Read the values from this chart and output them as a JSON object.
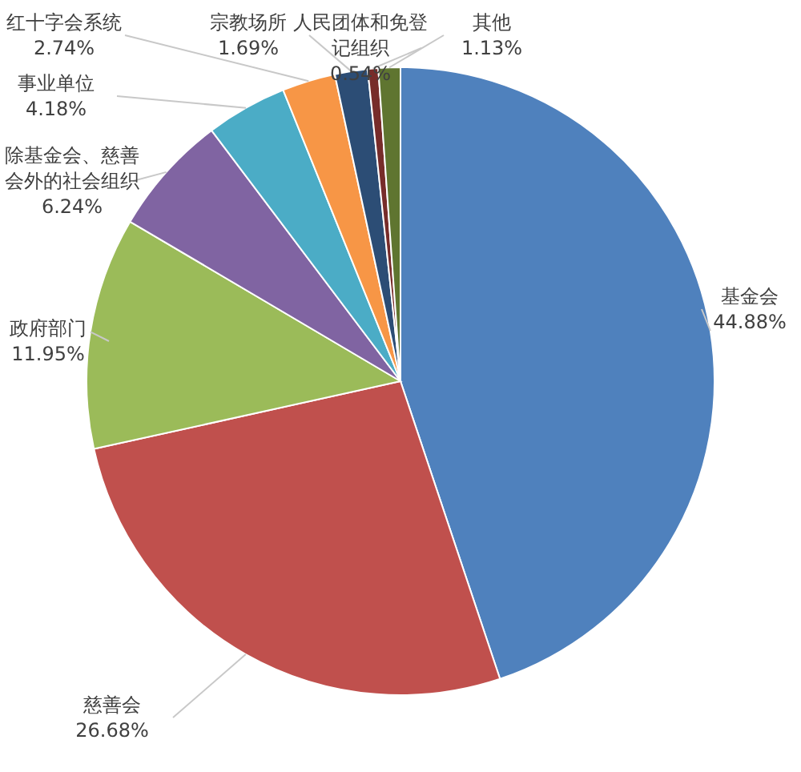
{
  "chart_data": {
    "type": "pie",
    "categories": [
      "基金会",
      "慈善会",
      "政府部门",
      "除基金会、慈善会外的社会组织",
      "事业单位",
      "红十字会系统",
      "宗教场所",
      "人民团体和免登记组织",
      "其他"
    ],
    "values": [
      44.88,
      26.68,
      11.95,
      6.24,
      4.18,
      2.74,
      1.69,
      0.54,
      1.13
    ],
    "value_labels": [
      "44.88%",
      "26.68%",
      "11.95%",
      "6.24%",
      "4.18%",
      "2.74%",
      "1.69%",
      "0.54%",
      "1.13%"
    ],
    "colors": [
      "#4f81bd",
      "#c0504d",
      "#9bbb59",
      "#8064a2",
      "#4bacc6",
      "#f79646",
      "#2c4d75",
      "#772c2a",
      "#5f7530"
    ]
  }
}
